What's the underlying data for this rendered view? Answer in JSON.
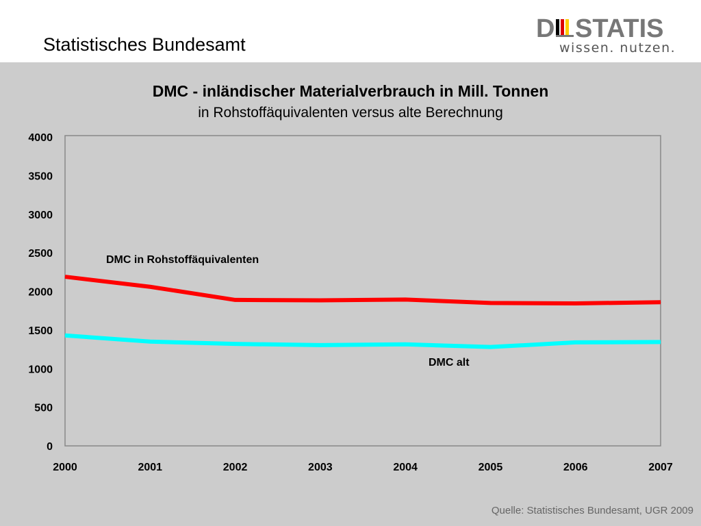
{
  "header": {
    "org_title": "Statistisches Bundesamt",
    "logo": {
      "wordmark_left": "D",
      "wordmark_right": "STATIS",
      "tagline": "wissen. nutzen.",
      "flag_colors": [
        "#000000",
        "#dd0000",
        "#ffcc00"
      ]
    }
  },
  "chart_data": {
    "type": "line",
    "title": "DMC - inländischer Materialverbrauch in Mill. Tonnen",
    "subtitle": "in Rohstoffäquivalenten versus alte Berechnung",
    "x": [
      "2000",
      "2001",
      "2002",
      "2003",
      "2004",
      "2005",
      "2006",
      "2007"
    ],
    "ylim": [
      0,
      4000
    ],
    "yticks": [
      "0",
      "500",
      "1000",
      "1500",
      "2000",
      "2500",
      "3000",
      "3500",
      "4000"
    ],
    "grid": false,
    "series": [
      {
        "name": "DMC in Rohstoffäquivalenten",
        "color": "#ff0000",
        "values": [
          2190,
          2060,
          1890,
          1885,
          1895,
          1850,
          1845,
          1860
        ]
      },
      {
        "name": "DMC alt",
        "color": "#00ffff",
        "values": [
          1430,
          1350,
          1320,
          1305,
          1315,
          1280,
          1340,
          1345
        ]
      }
    ]
  },
  "footer": {
    "source": "Quelle: Statistisches Bundesamt, UGR 2009"
  }
}
